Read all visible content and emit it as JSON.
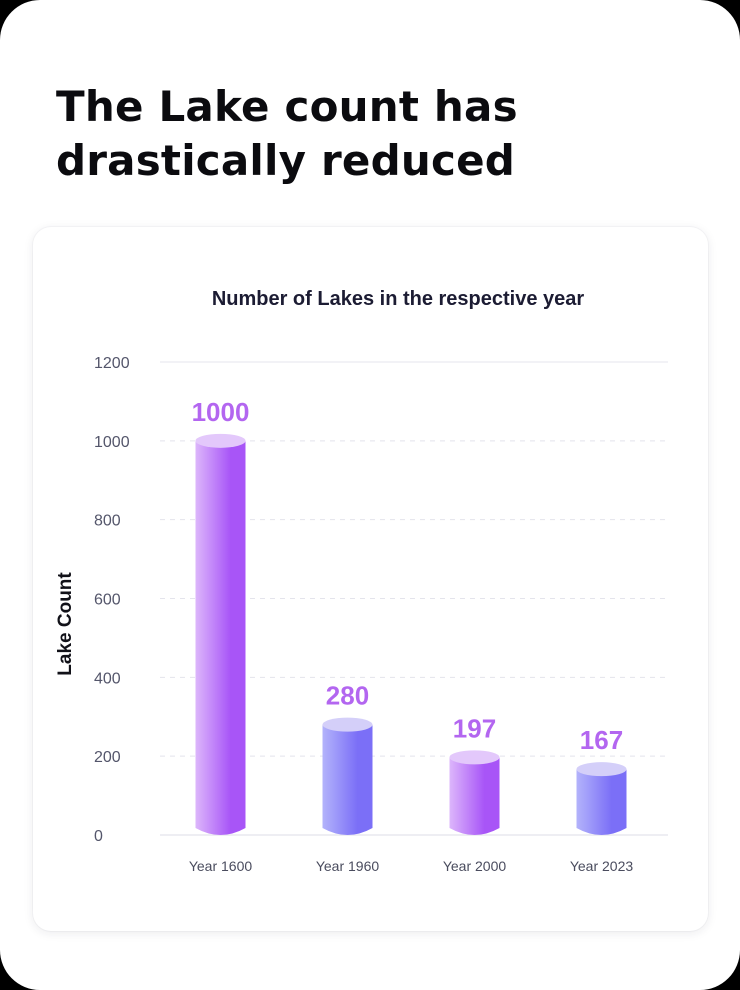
{
  "headline": "The Lake count has drastically reduced",
  "colors": {
    "purple_dark": "#a855f7",
    "purple_light": "#dcb6fb",
    "purple_top": "#e3c8fb",
    "blue_dark": "#7b6ff7",
    "blue_light": "#b3b3fb",
    "blue_top": "#d4cff9",
    "label_purple": "#b366f0",
    "grid": "#e4e4ec"
  },
  "chart_data": {
    "type": "bar",
    "title": "Number of Lakes in the respective year",
    "xlabel": "",
    "ylabel": "Lake Count",
    "categories": [
      "Year 1600",
      "Year 1960",
      "Year 2000",
      "Year 2023"
    ],
    "values": [
      1000,
      280,
      197,
      167
    ],
    "data_labels": [
      "1000",
      "280",
      "197",
      "167"
    ],
    "bar_styles": [
      "purple",
      "blue",
      "purple",
      "blue"
    ],
    "ylim": [
      0,
      1200
    ],
    "yticks": [
      0,
      200,
      400,
      600,
      800,
      1000,
      1200
    ],
    "ytick_labels": [
      "0",
      "200",
      "400",
      "600",
      "800",
      "1000",
      "1200"
    ],
    "grid": true,
    "legend": "none"
  }
}
